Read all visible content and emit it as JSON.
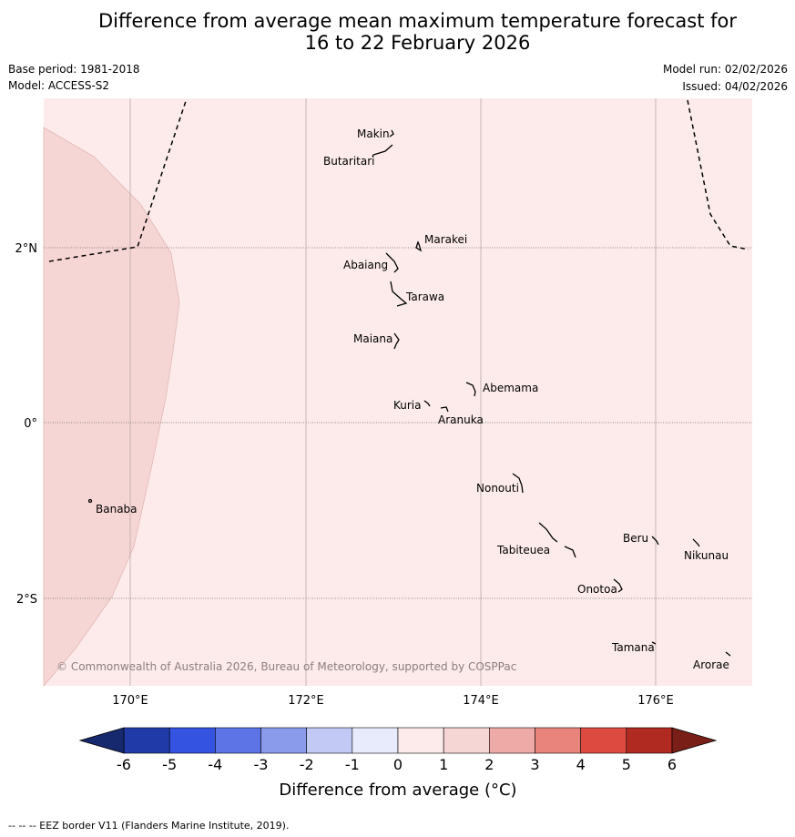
{
  "title": {
    "line1": "Difference from average mean maximum temperature forecast for",
    "line2": "16 to 22 February 2026"
  },
  "meta": {
    "base_period": "Base period: 1981-2018",
    "model": "Model: ACCESS-S2",
    "model_run": "Model run: 02/02/2026",
    "issued": "Issued: 04/02/2026"
  },
  "axes": {
    "lat_labels": [
      "2°N",
      "0°",
      "2°S"
    ],
    "lon_labels": [
      "170°E",
      "172°E",
      "174°E",
      "176°E"
    ]
  },
  "places": {
    "makin": "Makin",
    "butaritari": "Butaritari",
    "marakei": "Marakei",
    "abaiang": "Abaiang",
    "tarawa": "Tarawa",
    "maiana": "Maiana",
    "abemama": "Abemama",
    "kuria": "Kuria",
    "aranuka": "Aranuka",
    "nonouti": "Nonouti",
    "banaba": "Banaba",
    "beru": "Beru",
    "nikunau": "Nikunau",
    "tabiteuea": "Tabiteuea",
    "onotoa": "Onotoa",
    "tamana": "Tamana",
    "arorae": "Arorae"
  },
  "copyright": "© Commonwealth of Australia 2026, Bureau of Meteorology, supported by COSPPac",
  "colorbar": {
    "ticks": [
      "-6",
      "-5",
      "-4",
      "-3",
      "-2",
      "-1",
      "0",
      "1",
      "2",
      "3",
      "4",
      "5",
      "6"
    ],
    "label": "Difference from average (°C)",
    "colors": [
      "#203ba8",
      "#3453e0",
      "#5c74e6",
      "#8a9bec",
      "#c2c9f4",
      "#e8ebfb",
      "#fcebea",
      "#f6d6d4",
      "#eeaaa6",
      "#e8847c",
      "#dc4a40",
      "#b02a22"
    ],
    "low_extend": "#17296e",
    "high_extend": "#7a1f18"
  },
  "map_colors": {
    "class_0_1": "#fcebea",
    "class_1_2": "#f6d6d4"
  },
  "footer": "--  --  -- EEZ border V11 (Flanders Marine Institute, 2019)."
}
